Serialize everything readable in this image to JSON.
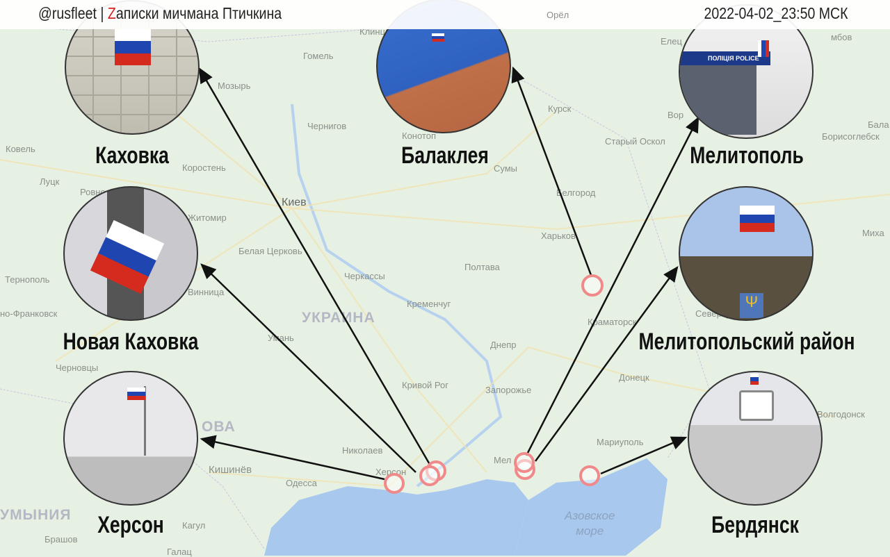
{
  "header": {
    "handle": "@rusfleet",
    "separator": "|",
    "title_z": "Z",
    "title_rest": "аписки мичмана Птичкина",
    "timestamp": "2022-04-02_23:50 МСК"
  },
  "colors": {
    "marker": "#f08a8a",
    "arrow": "#111111",
    "land": "#e6f1e3",
    "water": "#a9c8ee",
    "flag_white": "#ffffff",
    "flag_blue": "#1f45b0",
    "flag_red": "#d52b1e"
  },
  "map": {
    "cities": [
      "Гомель",
      "Мозырь",
      "Чернигов",
      "Ковель",
      "Коростень",
      "Луцк",
      "Ровно",
      "Киев",
      "Житомир",
      "Белая Церковь",
      "Тернополь",
      "Черкассы",
      "Кременчуг",
      "но-Франковск",
      "Винница",
      "Умань",
      "Черновцы",
      "Кривой Рог",
      "Днепр",
      "Запорожье",
      "Николаев",
      "Одесса",
      "Кишинёв",
      "Херсон",
      "Мел",
      "Мариуполь",
      "Брашов",
      "Кагул",
      "Галац",
      "Клинцы",
      "Орёл",
      "Конотоп",
      "Сумы",
      "Курск",
      "Белгород",
      "Старый Оскол",
      "Харьков",
      "Полтава",
      "Краматорск",
      "Северодонецк",
      "Донецк",
      "Волгодонск",
      "Борисоглебск",
      "Елец",
      "мбов",
      "Миха",
      "Бала",
      "Вор"
    ],
    "countries": [
      "УКРАИНА",
      "ОВА",
      "УМЫНИЯ"
    ],
    "sea": [
      "Азовское",
      "море"
    ]
  },
  "photos": [
    {
      "caption": "Каховка",
      "icon": "russian-flag-on-building"
    },
    {
      "caption": "Балаклея",
      "icon": "russian-flag-on-roof"
    },
    {
      "caption": "Мелитополь",
      "icon": "police-building-with-flag",
      "sign": "ПОЛІЦІЯ POLICE"
    },
    {
      "caption": "Новая Каховка",
      "icon": "russian-flag-on-wall"
    },
    {
      "caption": "Мелитопольский район",
      "icon": "russian-flag-on-building-with-trident"
    },
    {
      "caption": "Херсон",
      "icon": "russian-flag-on-pole"
    },
    {
      "caption": "Бердянск",
      "icon": "clock-tower-with-flag"
    }
  ]
}
